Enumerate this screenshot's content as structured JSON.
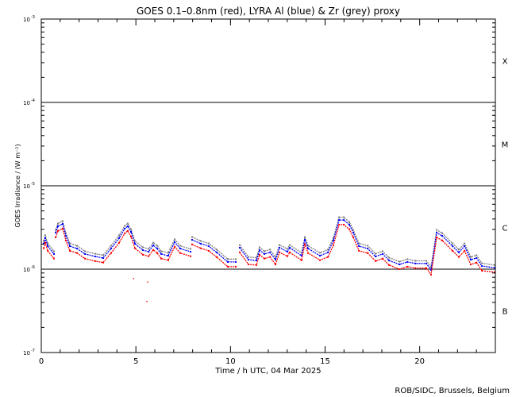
{
  "chart_data": {
    "type": "line",
    "title": "GOES 0.1–0.8nm (red), LYRA Al (blue) & Zr (grey) proxy",
    "xlabel": "Time / h UTC, 04 Mar 2025",
    "ylabel": "GOES Irradiance / (W m⁻²)",
    "xlim": [
      0,
      24
    ],
    "ylim": [
      1e-07,
      0.001
    ],
    "yscale": "log",
    "x_ticks": [
      0,
      5,
      10,
      15,
      20
    ],
    "y_ticks": [
      {
        "value": 0.001,
        "label": "10",
        "exp": "-3"
      },
      {
        "value": 0.0001,
        "label": "10",
        "exp": "-4"
      },
      {
        "value": 1e-05,
        "label": "10",
        "exp": "-5"
      },
      {
        "value": 1e-06,
        "label": "10",
        "exp": "-6"
      },
      {
        "value": 1e-07,
        "label": "10",
        "exp": "-7"
      }
    ],
    "reference_lines": [
      0.0001,
      1e-05,
      1e-06
    ],
    "flare_classes": [
      {
        "label": "X",
        "value": 0.000316
      },
      {
        "label": "M",
        "value": 3.16e-05
      },
      {
        "label": "C",
        "value": 3.16e-06
      },
      {
        "label": "B",
        "value": 3.16e-07
      }
    ],
    "x": [
      0.13,
      0.21,
      0.34,
      0.67,
      null,
      0.76,
      0.88,
      1.13,
      1.3,
      1.51,
      1.89,
      2.31,
      2.85,
      3.27,
      3.69,
      4.11,
      4.41,
      4.57,
      4.74,
      4.95,
      5.37,
      5.67,
      5.92,
      6.13,
      6.34,
      6.71,
      7.05,
      7.34,
      7.89,
      null,
      7.97,
      8.43,
      8.85,
      9.27,
      9.86,
      10.28,
      null,
      10.49,
      10.95,
      11.37,
      11.54,
      11.79,
      12.09,
      12.38,
      12.59,
      13.01,
      13.13,
      13.76,
      13.93,
      14.1,
      14.73,
      15.15,
      15.44,
      15.74,
      15.99,
      16.28,
      16.49,
      16.79,
      17.25,
      17.67,
      18.04,
      18.38,
      18.93,
      19.35,
      19.77,
      20.35,
      20.6,
      20.9,
      21.19,
      21.74,
      22.07,
      22.37,
      22.7,
      23.0,
      23.29,
      23.96
    ],
    "series": [
      {
        "color": "#808080",
        "values": [
          2.18e-06,
          2.54e-06,
          2.04e-06,
          1.64e-06,
          null,
          2.96e-06,
          3.53e-06,
          3.77e-06,
          2.71e-06,
          2.04e-06,
          1.91e-06,
          1.64e-06,
          1.53e-06,
          1.47e-06,
          1.91e-06,
          2.54e-06,
          3.3e-06,
          3.53e-06,
          3.02e-06,
          2.18e-06,
          1.83e-06,
          1.75e-06,
          2.08e-06,
          1.91e-06,
          1.64e-06,
          1.57e-06,
          2.28e-06,
          1.91e-06,
          1.75e-06,
          null,
          2.43e-06,
          2.18e-06,
          2.04e-06,
          1.72e-06,
          1.32e-06,
          1.32e-06,
          null,
          1.95e-06,
          1.4e-06,
          1.37e-06,
          1.83e-06,
          1.64e-06,
          1.72e-06,
          1.4e-06,
          1.95e-06,
          1.75e-06,
          1.95e-06,
          1.57e-06,
          2.43e-06,
          1.91e-06,
          1.57e-06,
          1.72e-06,
          2.38e-06,
          4.2e-06,
          4.2e-06,
          3.69e-06,
          2.96e-06,
          2.04e-06,
          1.91e-06,
          1.53e-06,
          1.64e-06,
          1.37e-06,
          1.23e-06,
          1.32e-06,
          1.26e-06,
          1.26e-06,
          1.06e-06,
          2.96e-06,
          2.71e-06,
          2.04e-06,
          1.72e-06,
          2.04e-06,
          1.4e-06,
          1.47e-06,
          1.18e-06,
          1.12e-06
        ]
      },
      {
        "color": "#0000ff",
        "values": [
          2.02e-06,
          2.35e-06,
          1.89e-06,
          1.52e-06,
          null,
          2.74e-06,
          3.27e-06,
          3.49e-06,
          2.51e-06,
          1.89e-06,
          1.77e-06,
          1.52e-06,
          1.42e-06,
          1.36e-06,
          1.77e-06,
          2.35e-06,
          3.06e-06,
          3.27e-06,
          2.8e-06,
          2.02e-06,
          1.69e-06,
          1.62e-06,
          1.93e-06,
          1.77e-06,
          1.52e-06,
          1.45e-06,
          2.11e-06,
          1.77e-06,
          1.62e-06,
          null,
          2.25e-06,
          2.02e-06,
          1.89e-06,
          1.59e-06,
          1.22e-06,
          1.22e-06,
          null,
          1.81e-06,
          1.3e-06,
          1.27e-06,
          1.69e-06,
          1.52e-06,
          1.59e-06,
          1.3e-06,
          1.81e-06,
          1.62e-06,
          1.81e-06,
          1.45e-06,
          2.25e-06,
          1.77e-06,
          1.45e-06,
          1.59e-06,
          2.2e-06,
          3.89e-06,
          3.89e-06,
          3.42e-06,
          2.74e-06,
          1.89e-06,
          1.77e-06,
          1.42e-06,
          1.52e-06,
          1.27e-06,
          1.14e-06,
          1.22e-06,
          1.17e-06,
          1.17e-06,
          9.8e-07,
          2.74e-06,
          2.51e-06,
          1.89e-06,
          1.59e-06,
          1.89e-06,
          1.3e-06,
          1.36e-06,
          1.09e-06,
          1.04e-06
        ]
      },
      {
        "color": "#ff0000",
        "values": [
          1.78e-06,
          2.07e-06,
          1.66e-06,
          1.34e-06,
          null,
          2.41e-06,
          2.88e-06,
          3.07e-06,
          2.21e-06,
          1.66e-06,
          1.56e-06,
          1.34e-06,
          1.25e-06,
          1.2e-06,
          1.56e-06,
          2.07e-06,
          2.69e-06,
          2.88e-06,
          2.46e-06,
          1.78e-06,
          1.49e-06,
          1.43e-06,
          1.7e-06,
          1.56e-06,
          1.34e-06,
          1.28e-06,
          1.86e-06,
          1.56e-06,
          1.43e-06,
          null,
          1.98e-06,
          1.78e-06,
          1.66e-06,
          1.4e-06,
          1.07e-06,
          1.07e-06,
          null,
          1.59e-06,
          1.14e-06,
          1.12e-06,
          1.49e-06,
          1.34e-06,
          1.4e-06,
          1.14e-06,
          1.59e-06,
          1.43e-06,
          1.59e-06,
          1.28e-06,
          1.98e-06,
          1.56e-06,
          1.28e-06,
          1.4e-06,
          1.94e-06,
          3.42e-06,
          3.42e-06,
          3.01e-06,
          2.41e-06,
          1.66e-06,
          1.56e-06,
          1.25e-06,
          1.34e-06,
          1.12e-06,
          1e-06,
          1.07e-06,
          1.03e-06,
          1.03e-06,
          8.6e-07,
          2.41e-06,
          2.21e-06,
          1.66e-06,
          1.4e-06,
          1.66e-06,
          1.14e-06,
          1.2e-06,
          9.6e-07,
          9.2e-07
        ]
      }
    ],
    "outlier_points": {
      "color": "#ff0000",
      "x": [
        4.88,
        5.62,
        5.58
      ],
      "values": [
        7.7e-07,
        7e-07,
        4.1e-07
      ]
    },
    "grid": false,
    "legend": "none"
  },
  "credit": "ROB/SIDC, Brussels, Belgium"
}
